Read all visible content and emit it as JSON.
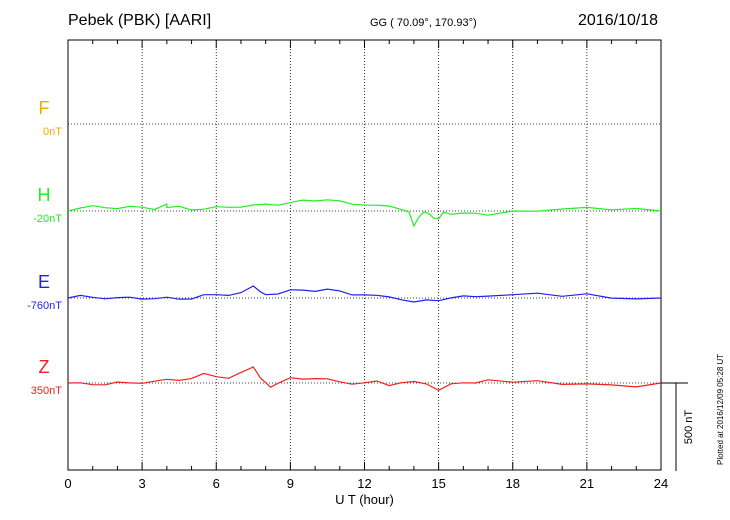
{
  "header": {
    "station": "Pebek (PBK)  [AARI]",
    "coords": "GG ( 70.09°, 170.93°)",
    "date": "2016/10/18"
  },
  "footer": {
    "plotted": "Plotted at 2016/12/09 05:28 UT"
  },
  "chart_data": {
    "type": "line",
    "xlabel": "U T (hour)",
    "xlim": [
      0,
      24
    ],
    "xticks": [
      0,
      3,
      6,
      9,
      12,
      15,
      18,
      21,
      24
    ],
    "scale_bar": {
      "label": "500 nT",
      "value": 500
    },
    "series": [
      {
        "name": "F",
        "baseline_label": "0nT",
        "color": "#ffa500",
        "x": [],
        "y": []
      },
      {
        "name": "H",
        "baseline_label": "-20nT",
        "color": "#22ee22",
        "x": [
          0,
          0.5,
          1,
          1.5,
          2,
          2.5,
          3,
          3.5,
          4,
          4,
          4.5,
          5,
          5.5,
          6,
          6.5,
          7,
          7.5,
          8,
          8.5,
          9,
          9.5,
          10,
          10.5,
          11,
          11.5,
          12,
          12.5,
          13,
          13.5,
          13.8,
          14,
          14.2,
          14.4,
          14.6,
          14.8,
          15,
          15.2,
          15.5,
          16,
          16.5,
          17,
          18,
          19,
          20,
          21,
          22,
          23,
          24
        ],
        "y": [
          0,
          5,
          8,
          10,
          12,
          15,
          18,
          20,
          45,
          25,
          30,
          25,
          28,
          30,
          35,
          40,
          35,
          38,
          40,
          42,
          45,
          50,
          55,
          35,
          25,
          30,
          20,
          18,
          15,
          5,
          -80,
          -40,
          -10,
          -5,
          -20,
          -30,
          -10,
          0,
          -5,
          0,
          -3,
          0,
          0,
          5,
          0,
          2,
          -2,
          0
        ]
      },
      {
        "name": "E",
        "baseline_label": "-760nT",
        "color": "#2020ee",
        "x": [
          0,
          0.5,
          1,
          1.5,
          2,
          2.5,
          3,
          3.5,
          4,
          4.5,
          5,
          5.5,
          6,
          6.5,
          7,
          7.5,
          7.8,
          8,
          8.5,
          9,
          9.5,
          10,
          10.5,
          11,
          11.5,
          12,
          12.5,
          13,
          13.5,
          14,
          14.5,
          15,
          15.5,
          16,
          16.5,
          17,
          18,
          19,
          20,
          21,
          22,
          23,
          24
        ],
        "y": [
          0,
          5,
          0,
          8,
          10,
          8,
          12,
          15,
          10,
          5,
          12,
          20,
          15,
          20,
          25,
          50,
          30,
          10,
          15,
          25,
          30,
          35,
          40,
          30,
          25,
          25,
          15,
          20,
          10,
          -15,
          0,
          5,
          8,
          10,
          15,
          12,
          10,
          8,
          5,
          8,
          5,
          3,
          0
        ]
      },
      {
        "name": "Z",
        "baseline_label": "350nT",
        "color": "#ee2020",
        "x": [
          0,
          0.5,
          1,
          1.5,
          2,
          2.5,
          3,
          3.5,
          4,
          4.5,
          5,
          5.5,
          6,
          6.5,
          7,
          7.5,
          7.8,
          8,
          8.2,
          8.5,
          9,
          9.5,
          10,
          10.5,
          11,
          11.5,
          12,
          12.5,
          13,
          13.5,
          14,
          14.5,
          15,
          15.5,
          16,
          16.5,
          17,
          18,
          19,
          20,
          21,
          22,
          23,
          24
        ],
        "y": [
          0,
          5,
          8,
          10,
          12,
          10,
          15,
          12,
          15,
          18,
          20,
          35,
          25,
          20,
          40,
          75,
          40,
          0,
          -30,
          -10,
          20,
          30,
          35,
          25,
          20,
          15,
          10,
          20,
          5,
          10,
          5,
          0,
          -40,
          -20,
          -10,
          -5,
          0,
          0,
          -2,
          0,
          2,
          0,
          -2,
          0
        ]
      }
    ]
  }
}
